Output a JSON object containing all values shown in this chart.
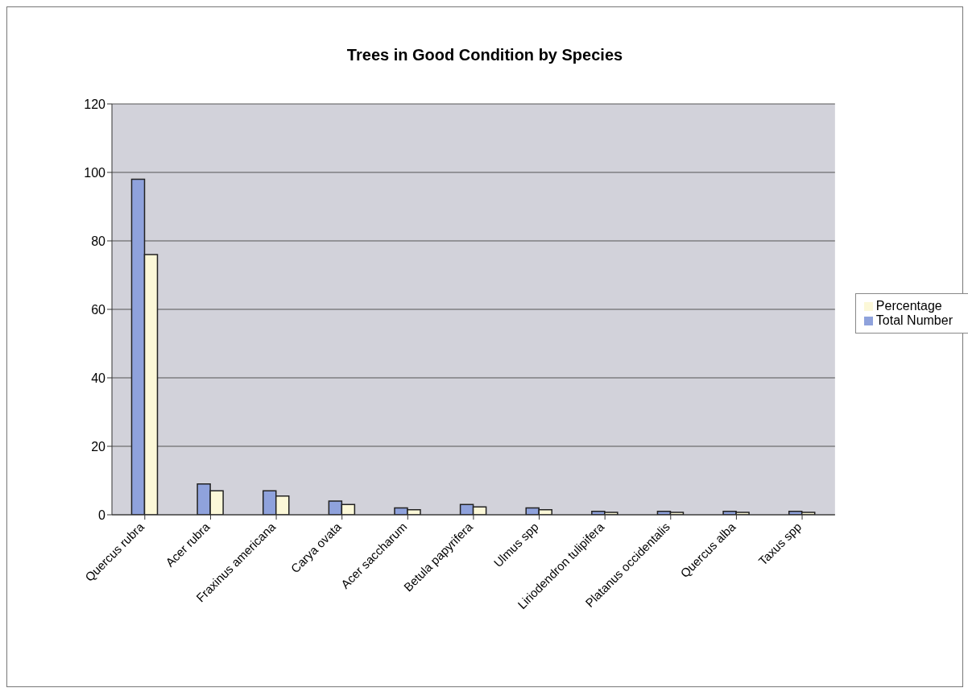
{
  "chart_data": {
    "type": "bar",
    "title": "Trees in Good Condition by Species",
    "categories": [
      "Quercus rubra",
      "Acer rubra",
      "Fraxinus americana",
      "Carya ovata",
      "Acer saccharum",
      "Betula papyrifera",
      "Ulmus spp",
      "Liriodendron tulipifera",
      "Platanus occidentalis",
      "Quercus alba",
      "Taxus spp"
    ],
    "series": [
      {
        "name": "Total Number",
        "color": "#8fa2dc",
        "values": [
          98,
          9,
          7,
          4,
          2,
          3,
          2,
          1,
          1,
          1,
          1
        ]
      },
      {
        "name": "Percentage",
        "color": "#fcf8d8",
        "values": [
          76,
          7,
          5.5,
          3,
          1.5,
          2.3,
          1.5,
          0.7,
          0.7,
          0.7,
          0.7
        ]
      }
    ],
    "ylim": [
      0,
      120
    ],
    "yticks": [
      0,
      20,
      40,
      60,
      80,
      100,
      120
    ],
    "grid": "y",
    "legend": "right"
  }
}
